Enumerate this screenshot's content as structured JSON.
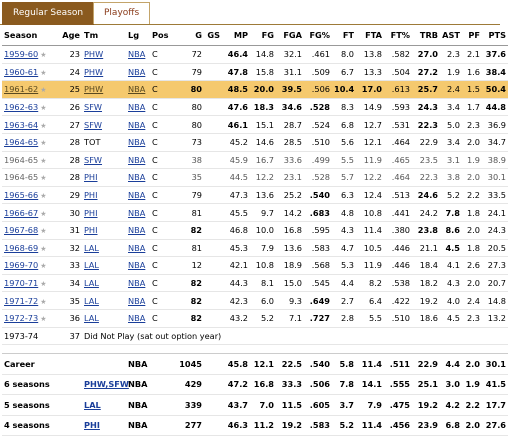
{
  "tabs": {
    "regular": "Regular Season",
    "playoffs": "Playoffs"
  },
  "headers": [
    "Season",
    "Age",
    "Tm",
    "Lg",
    "Pos",
    "G",
    "GS",
    "MP",
    "FG",
    "FGA",
    "FG%",
    "FT",
    "FTA",
    "FT%",
    "TRB",
    "AST",
    "PF",
    "PTS"
  ],
  "rows": [
    {
      "season": "1959-60",
      "age": "23",
      "tm": "PHW",
      "lg": "NBA",
      "pos": "C",
      "g": "72",
      "gs": "",
      "mp": "46.4",
      "fg": "14.8",
      "fga": "32.1",
      "fgp": ".461",
      "ft": "8.0",
      "fta": "13.8",
      "ftp": ".582",
      "trb": "27.0",
      "ast": "2.3",
      "pf": "2.1",
      "pts": "37.6"
    },
    {
      "season": "1960-61",
      "age": "24",
      "tm": "PHW",
      "lg": "NBA",
      "pos": "C",
      "g": "79",
      "gs": "",
      "mp": "47.8",
      "fg": "15.8",
      "fga": "31.1",
      "fgp": ".509",
      "ft": "6.7",
      "fta": "13.3",
      "ftp": ".504",
      "trb": "27.2",
      "ast": "1.9",
      "pf": "1.6",
      "pts": "38.4"
    },
    {
      "season": "1961-62",
      "age": "25",
      "tm": "PHW",
      "lg": "NBA",
      "pos": "C",
      "g": "80",
      "gs": "",
      "mp": "48.5",
      "fg": "20.0",
      "fga": "39.5",
      "fgp": ".506",
      "ft": "10.4",
      "fta": "17.0",
      "ftp": ".613",
      "trb": "25.7",
      "ast": "2.4",
      "pf": "1.5",
      "pts": "50.4",
      "highlight": true
    },
    {
      "season": "1962-63",
      "age": "26",
      "tm": "SFW",
      "lg": "NBA",
      "pos": "C",
      "g": "80",
      "gs": "",
      "mp": "47.6",
      "fg": "18.3",
      "fga": "34.6",
      "fgp": ".528",
      "ft": "8.3",
      "fta": "14.9",
      "ftp": ".593",
      "trb": "24.3",
      "ast": "3.4",
      "pf": "1.7",
      "pts": "44.8"
    },
    {
      "season": "1963-64",
      "age": "27",
      "tm": "SFW",
      "lg": "NBA",
      "pos": "C",
      "g": "80",
      "gs": "",
      "mp": "46.1",
      "fg": "15.1",
      "fga": "28.7",
      "fgp": ".524",
      "ft": "6.8",
      "fta": "12.7",
      "ftp": ".531",
      "trb": "22.3",
      "ast": "5.0",
      "pf": "2.3",
      "pts": "36.9"
    },
    {
      "season": "1964-65",
      "age": "28",
      "tm": "TOT",
      "lg": "NBA",
      "pos": "C",
      "g": "73",
      "gs": "",
      "mp": "45.2",
      "fg": "14.6",
      "fga": "28.5",
      "fgp": ".510",
      "ft": "5.6",
      "fta": "12.1",
      "ftp": ".464",
      "trb": "22.9",
      "ast": "3.4",
      "pf": "2.0",
      "pts": "34.7",
      "tot": true
    },
    {
      "season": "1964-65",
      "age": "28",
      "tm": "SFW",
      "lg": "NBA",
      "pos": "C",
      "g": "38",
      "gs": "",
      "mp": "45.9",
      "fg": "16.7",
      "fga": "33.6",
      "fgp": ".499",
      "ft": "5.5",
      "fta": "11.9",
      "ftp": ".465",
      "trb": "23.5",
      "ast": "3.1",
      "pf": "1.9",
      "pts": "38.9",
      "sub": true
    },
    {
      "season": "1964-65",
      "age": "28",
      "tm": "PHI",
      "lg": "NBA",
      "pos": "C",
      "g": "35",
      "gs": "",
      "mp": "44.5",
      "fg": "12.2",
      "fga": "23.1",
      "fgp": ".528",
      "ft": "5.7",
      "fta": "12.2",
      "ftp": ".464",
      "trb": "22.3",
      "ast": "3.8",
      "pf": "2.0",
      "pts": "30.1",
      "sub": true
    },
    {
      "season": "1965-66",
      "age": "29",
      "tm": "PHI",
      "lg": "NBA",
      "pos": "C",
      "g": "79",
      "gs": "",
      "mp": "47.3",
      "fg": "13.6",
      "fga": "25.2",
      "fgp": ".540",
      "ft": "6.3",
      "fta": "12.4",
      "ftp": ".513",
      "trb": "24.6",
      "ast": "5.2",
      "pf": "2.2",
      "pts": "33.5"
    },
    {
      "season": "1966-67",
      "age": "30",
      "tm": "PHI",
      "lg": "NBA",
      "pos": "C",
      "g": "81",
      "gs": "",
      "mp": "45.5",
      "fg": "9.7",
      "fga": "14.2",
      "fgp": ".683",
      "ft": "4.8",
      "fta": "10.8",
      "ftp": ".441",
      "trb": "24.2",
      "ast": "7.8",
      "pf": "1.8",
      "pts": "24.1"
    },
    {
      "season": "1967-68",
      "age": "31",
      "tm": "PHI",
      "lg": "NBA",
      "pos": "C",
      "g": "82",
      "gs": "",
      "mp": "46.8",
      "fg": "10.0",
      "fga": "16.8",
      "fgp": ".595",
      "ft": "4.3",
      "fta": "11.4",
      "ftp": ".380",
      "trb": "23.8",
      "ast": "8.6",
      "pf": "2.0",
      "pts": "24.3"
    },
    {
      "season": "1968-69",
      "age": "32",
      "tm": "LAL",
      "lg": "NBA",
      "pos": "C",
      "g": "81",
      "gs": "",
      "mp": "45.3",
      "fg": "7.9",
      "fga": "13.6",
      "fgp": ".583",
      "ft": "4.7",
      "fta": "10.5",
      "ftp": ".446",
      "trb": "21.1",
      "ast": "4.5",
      "pf": "1.8",
      "pts": "20.5"
    },
    {
      "season": "1969-70",
      "age": "33",
      "tm": "LAL",
      "lg": "NBA",
      "pos": "C",
      "g": "12",
      "gs": "",
      "mp": "42.1",
      "fg": "10.8",
      "fga": "18.9",
      "fgp": ".568",
      "ft": "5.3",
      "fta": "11.9",
      "ftp": ".446",
      "trb": "18.4",
      "ast": "4.1",
      "pf": "2.6",
      "pts": "27.3"
    },
    {
      "season": "1970-71",
      "age": "34",
      "tm": "LAL",
      "lg": "NBA",
      "pos": "C",
      "g": "82",
      "gs": "",
      "mp": "44.3",
      "fg": "8.1",
      "fga": "15.0",
      "fgp": ".545",
      "ft": "4.4",
      "fta": "8.2",
      "ftp": ".538",
      "trb": "18.2",
      "ast": "4.3",
      "pf": "2.0",
      "pts": "20.7"
    },
    {
      "season": "1971-72",
      "age": "35",
      "tm": "LAL",
      "lg": "NBA",
      "pos": "C",
      "g": "82",
      "gs": "",
      "mp": "42.3",
      "fg": "6.0",
      "fga": "9.3",
      "fgp": ".649",
      "ft": "2.7",
      "fta": "6.4",
      "ftp": ".422",
      "trb": "19.2",
      "ast": "4.0",
      "pf": "2.4",
      "pts": "14.8"
    },
    {
      "season": "1972-73",
      "age": "36",
      "tm": "LAL",
      "lg": "NBA",
      "pos": "C",
      "g": "82",
      "gs": "",
      "mp": "43.2",
      "fg": "5.2",
      "fga": "7.1",
      "fgp": ".727",
      "ft": "2.8",
      "fta": "5.5",
      "ftp": ".510",
      "trb": "18.6",
      "ast": "4.5",
      "pf": "2.3",
      "pts": "13.2"
    }
  ],
  "dnp": {
    "season": "1973-74",
    "age": "37",
    "text": "Did Not Play (sat out option year)"
  },
  "summary": [
    {
      "label": "Career",
      "teams": "",
      "lg": "NBA",
      "g": "1045",
      "mp": "45.8",
      "fg": "12.1",
      "fga": "22.5",
      "fgp": ".540",
      "ft": "5.8",
      "fta": "11.4",
      "ftp": ".511",
      "trb": "22.9",
      "ast": "4.4",
      "pf": "2.0",
      "pts": "30.1"
    },
    {
      "label": "6 seasons",
      "teams": "PHW,SFW",
      "lg": "NBA",
      "g": "429",
      "mp": "47.2",
      "fg": "16.8",
      "fga": "33.3",
      "fgp": ".506",
      "ft": "7.8",
      "fta": "14.1",
      "ftp": ".555",
      "trb": "25.1",
      "ast": "3.0",
      "pf": "1.9",
      "pts": "41.5"
    },
    {
      "label": "5 seasons",
      "teams": "LAL",
      "lg": "NBA",
      "g": "339",
      "mp": "43.7",
      "fg": "7.0",
      "fga": "11.5",
      "fgp": ".605",
      "ft": "3.7",
      "fta": "7.9",
      "ftp": ".475",
      "trb": "19.2",
      "ast": "4.2",
      "pf": "2.2",
      "pts": "17.7"
    },
    {
      "label": "4 seasons",
      "teams": "PHI",
      "lg": "NBA",
      "g": "277",
      "mp": "46.3",
      "fg": "11.2",
      "fga": "19.2",
      "fgp": ".583",
      "ft": "5.2",
      "fta": "11.4",
      "ftp": ".456",
      "trb": "23.9",
      "ast": "6.8",
      "pf": "2.0",
      "pts": "27.6"
    }
  ]
}
